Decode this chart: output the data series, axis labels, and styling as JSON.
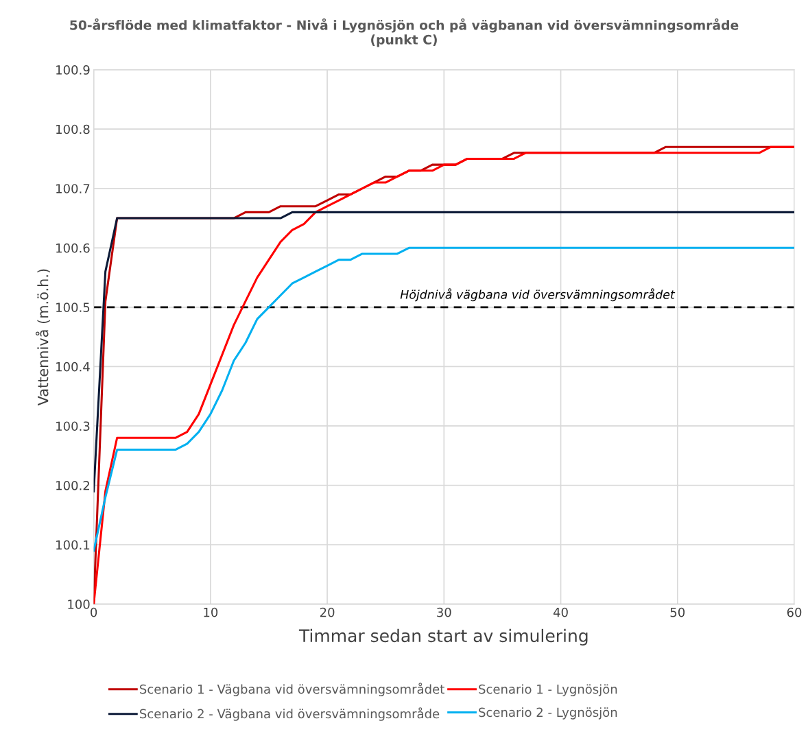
{
  "chart_data": {
    "type": "line",
    "title": "50-årsflöde med klimatfaktor - Nivå i Lygnösjön och på vägbanan vid översvämningsområde\n(punkt C)",
    "xlabel": "Timmar sedan start av simulering",
    "ylabel": "Vattennivå (m.ö.h.)",
    "x": [
      0,
      1,
      2,
      3,
      4,
      5,
      6,
      7,
      8,
      9,
      10,
      11,
      12,
      13,
      14,
      15,
      16,
      17,
      18,
      19,
      20,
      21,
      22,
      23,
      24,
      25,
      26,
      27,
      28,
      29,
      30,
      31,
      32,
      33,
      34,
      35,
      36,
      37,
      38,
      39,
      40,
      41,
      42,
      43,
      44,
      45,
      46,
      47,
      48,
      49,
      50,
      51,
      52,
      53,
      54,
      55,
      56,
      57,
      58,
      59,
      60
    ],
    "series": [
      {
        "name": "Scenario 1 - Vägbana vid översvämningsområdet",
        "color": "#c00000",
        "values": [
          100.0,
          100.51,
          100.65,
          100.65,
          100.65,
          100.65,
          100.65,
          100.65,
          100.65,
          100.65,
          100.65,
          100.65,
          100.65,
          100.66,
          100.66,
          100.66,
          100.67,
          100.67,
          100.67,
          100.67,
          100.68,
          100.69,
          100.69,
          100.7,
          100.71,
          100.72,
          100.72,
          100.73,
          100.73,
          100.74,
          100.74,
          100.74,
          100.75,
          100.75,
          100.75,
          100.75,
          100.76,
          100.76,
          100.76,
          100.76,
          100.76,
          100.76,
          100.76,
          100.76,
          100.76,
          100.76,
          100.76,
          100.76,
          100.76,
          100.77,
          100.77,
          100.77,
          100.77,
          100.77,
          100.77,
          100.77,
          100.77,
          100.77,
          100.77,
          100.77,
          100.77
        ]
      },
      {
        "name": "Scenario 1 - Lygnösjön",
        "color": "#ff0000",
        "values": [
          100.0,
          100.19,
          100.28,
          100.28,
          100.28,
          100.28,
          100.28,
          100.28,
          100.29,
          100.32,
          100.37,
          100.42,
          100.47,
          100.51,
          100.55,
          100.58,
          100.61,
          100.63,
          100.64,
          100.66,
          100.67,
          100.68,
          100.69,
          100.7,
          100.71,
          100.71,
          100.72,
          100.73,
          100.73,
          100.73,
          100.74,
          100.74,
          100.75,
          100.75,
          100.75,
          100.75,
          100.75,
          100.76,
          100.76,
          100.76,
          100.76,
          100.76,
          100.76,
          100.76,
          100.76,
          100.76,
          100.76,
          100.76,
          100.76,
          100.76,
          100.76,
          100.76,
          100.76,
          100.76,
          100.76,
          100.76,
          100.76,
          100.76,
          100.77,
          100.77,
          100.77
        ]
      },
      {
        "name": "Scenario 2 - Vägbana vid översvämningsområde",
        "color": "#0d1b38",
        "values": [
          100.19,
          100.56,
          100.65,
          100.65,
          100.65,
          100.65,
          100.65,
          100.65,
          100.65,
          100.65,
          100.65,
          100.65,
          100.65,
          100.65,
          100.65,
          100.65,
          100.65,
          100.66,
          100.66,
          100.66,
          100.66,
          100.66,
          100.66,
          100.66,
          100.66,
          100.66,
          100.66,
          100.66,
          100.66,
          100.66,
          100.66,
          100.66,
          100.66,
          100.66,
          100.66,
          100.66,
          100.66,
          100.66,
          100.66,
          100.66,
          100.66,
          100.66,
          100.66,
          100.66,
          100.66,
          100.66,
          100.66,
          100.66,
          100.66,
          100.66,
          100.66,
          100.66,
          100.66,
          100.66,
          100.66,
          100.66,
          100.66,
          100.66,
          100.66,
          100.66,
          100.66
        ]
      },
      {
        "name": "Scenario 2 - Lygnösjön",
        "color": "#00b0f0",
        "values": [
          100.09,
          100.18,
          100.26,
          100.26,
          100.26,
          100.26,
          100.26,
          100.26,
          100.27,
          100.29,
          100.32,
          100.36,
          100.41,
          100.44,
          100.48,
          100.5,
          100.52,
          100.54,
          100.55,
          100.56,
          100.57,
          100.58,
          100.58,
          100.59,
          100.59,
          100.59,
          100.59,
          100.6,
          100.6,
          100.6,
          100.6,
          100.6,
          100.6,
          100.6,
          100.6,
          100.6,
          100.6,
          100.6,
          100.6,
          100.6,
          100.6,
          100.6,
          100.6,
          100.6,
          100.6,
          100.6,
          100.6,
          100.6,
          100.6,
          100.6,
          100.6,
          100.6,
          100.6,
          100.6,
          100.6,
          100.6,
          100.6,
          100.6,
          100.6,
          100.6,
          100.6
        ]
      }
    ],
    "ref_lines": [
      {
        "axis": "y",
        "value": 100.5,
        "label": "Höjdnivå vägbana vid översvämningsområdet",
        "color": "#000000",
        "line_style": "dashed"
      }
    ],
    "xlim": [
      0,
      60
    ],
    "xticks": [
      0,
      10,
      20,
      30,
      40,
      50,
      60
    ],
    "ylim": [
      100,
      100.9
    ],
    "yticks": [
      100,
      100.1,
      100.2,
      100.3,
      100.4,
      100.5,
      100.6,
      100.7,
      100.8,
      100.9
    ],
    "grid": true,
    "legend": "bottom",
    "marker": "none",
    "line_style": "solid"
  }
}
